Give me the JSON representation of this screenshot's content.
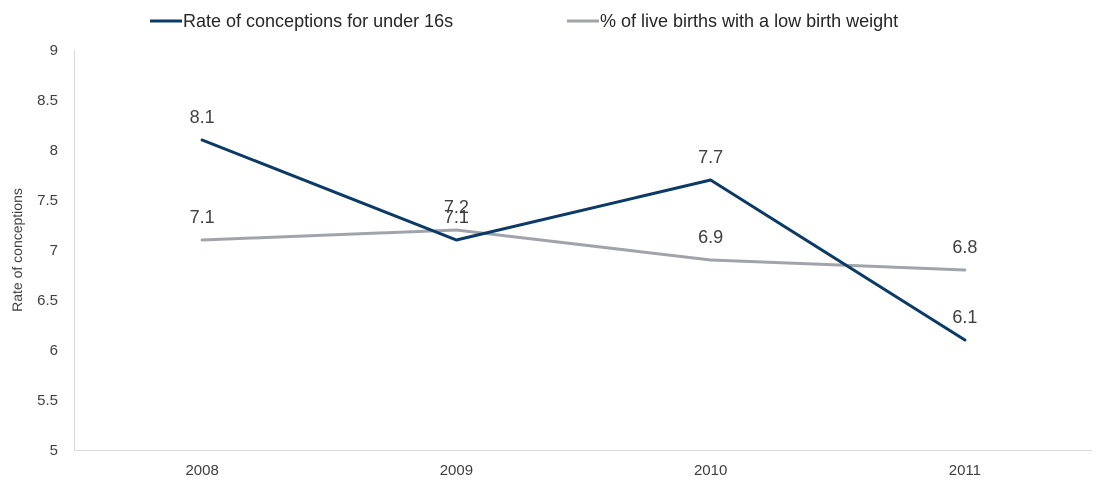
{
  "chart_data": {
    "type": "line",
    "title": "",
    "xlabel": "",
    "ylabel": "Rate of conceptions",
    "categories": [
      "2008",
      "2009",
      "2010",
      "2011"
    ],
    "ylim": [
      5,
      9
    ],
    "yticks": [
      5,
      5.5,
      6,
      6.5,
      7,
      7.5,
      8,
      8.5,
      9
    ],
    "grid": false,
    "legend_position": "top",
    "series": [
      {
        "name": "Rate of conceptions for under 16s",
        "color": "#0b3a66",
        "values": [
          8.1,
          7.1,
          7.7,
          6.1
        ],
        "labels": [
          "8.1",
          "7.1",
          "7.7",
          "6.1"
        ]
      },
      {
        "name": "% of live births with a low birth weight",
        "color": "#a0a4aa",
        "values": [
          7.1,
          7.2,
          6.9,
          6.8
        ],
        "labels": [
          "7.1",
          "7.2",
          "6.9",
          "6.8"
        ]
      }
    ]
  }
}
